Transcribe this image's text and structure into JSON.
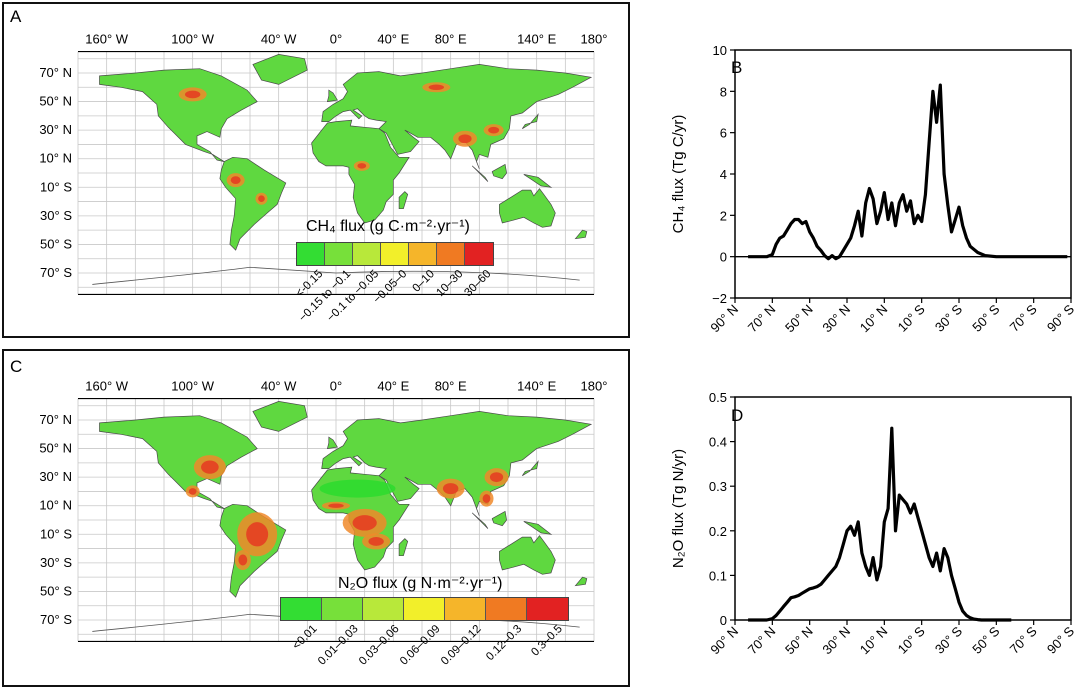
{
  "panels": {
    "A": {
      "letter": "A",
      "lon_labels": [
        "160° W",
        "100° W",
        "40° W",
        "0°",
        "40° E",
        "80° E",
        "140° E",
        "180°"
      ],
      "lat_labels": [
        "70° N",
        "50° N",
        "30° N",
        "10° N",
        "10° S",
        "30° S",
        "50° S",
        "70° S"
      ]
    },
    "C": {
      "letter": "C",
      "lon_labels": [
        "160° W",
        "100° W",
        "40° W",
        "0°",
        "40° E",
        "80° E",
        "140° E",
        "180°"
      ],
      "lat_labels": [
        "70° N",
        "50° N",
        "30° N",
        "10° N",
        "10° S",
        "30° S",
        "50° S",
        "70° S"
      ]
    },
    "B": {
      "letter": "B"
    },
    "D": {
      "letter": "D"
    }
  },
  "legend_ch4": {
    "title": "CH₄ flux (g C·m⁻²·yr⁻¹)",
    "labels": [
      "<-0.15",
      "−0.15 to −0.1",
      "−0.1 to −0.05",
      "−0.05–0",
      "0–10",
      "10–30",
      "30–60"
    ],
    "colors": [
      "#33dd33",
      "#77e03a",
      "#b8e83a",
      "#f2ef2a",
      "#f5b52a",
      "#f07a22",
      "#e22222"
    ]
  },
  "legend_n2o": {
    "title": "N₂O flux (g N·m⁻²·yr⁻¹)",
    "labels": [
      "<0.01",
      "0.01–0.03",
      "0.03–0.06",
      "0.06–0.09",
      "0.09–0.12",
      "0.12–0.3",
      "0.3–0.5"
    ],
    "colors": [
      "#33dd33",
      "#77e03a",
      "#b8e83a",
      "#f2ef2a",
      "#f5b52a",
      "#f07a22",
      "#e22222"
    ]
  },
  "colors": {
    "land_green": "#5fd840",
    "hot_red": "#e53a22",
    "hot_orange": "#f08a2a",
    "grid": "#c8c8c8",
    "line": "#000000"
  },
  "chart_data": [
    {
      "id": "B",
      "type": "line",
      "ylabel": "CH₄ flux (Tg C/yr)",
      "ylim": [
        -2,
        10
      ],
      "yticks": [
        -2,
        0,
        2,
        4,
        6,
        8,
        10
      ],
      "xticks": [
        90,
        70,
        50,
        30,
        10,
        -10,
        -30,
        -50,
        -70,
        -90
      ],
      "xtick_labels": [
        "90° N",
        "70° N",
        "50° N",
        "30° N",
        "10° N",
        "10° S",
        "30° S",
        "50° S",
        "70° S",
        "90° S"
      ],
      "zero_line": true,
      "x": [
        83,
        80,
        76,
        73,
        70,
        68,
        66,
        64,
        62,
        60,
        58,
        56,
        54,
        52,
        50,
        48,
        46,
        44,
        42,
        40,
        38,
        36,
        34,
        32,
        30,
        28,
        26,
        24,
        22,
        20,
        18,
        16,
        14,
        12,
        10,
        8,
        6,
        4,
        2,
        0,
        -2,
        -4,
        -6,
        -8,
        -10,
        -12,
        -14,
        -16,
        -18,
        -20,
        -22,
        -24,
        -26,
        -28,
        -30,
        -32,
        -34,
        -36,
        -40,
        -44,
        -50,
        -56,
        -62,
        -70,
        -80,
        -88
      ],
      "y": [
        0,
        0,
        0,
        0,
        0.1,
        0.6,
        0.9,
        1.0,
        1.3,
        1.6,
        1.8,
        1.8,
        1.6,
        1.7,
        1.2,
        0.9,
        0.5,
        0.3,
        0.05,
        -0.1,
        0.05,
        -0.1,
        0,
        0.3,
        0.6,
        0.9,
        1.5,
        2.2,
        1.0,
        2.6,
        3.3,
        2.8,
        1.6,
        2.2,
        3.1,
        1.8,
        2.6,
        1.5,
        2.6,
        3.0,
        2.2,
        2.7,
        1.6,
        2.0,
        1.7,
        3.0,
        5.5,
        8.0,
        6.5,
        8.3,
        4.0,
        2.5,
        1.2,
        1.8,
        2.4,
        1.5,
        0.9,
        0.5,
        0.2,
        0.05,
        0,
        0,
        0,
        0,
        0,
        0
      ]
    },
    {
      "id": "D",
      "type": "line",
      "ylabel": "N₂O flux (Tg N/yr)",
      "ylim": [
        0,
        0.5
      ],
      "yticks": [
        0,
        0.1,
        0.2,
        0.3,
        0.4,
        0.5
      ],
      "xticks": [
        90,
        70,
        50,
        30,
        10,
        -10,
        -30,
        -50,
        -70,
        -90
      ],
      "xtick_labels": [
        "90° N",
        "70° N",
        "50° N",
        "30° N",
        "10° N",
        "10° S",
        "30° S",
        "50° S",
        "70° S",
        "90° S"
      ],
      "zero_line": false,
      "x": [
        83,
        80,
        76,
        73,
        70,
        68,
        66,
        64,
        62,
        60,
        58,
        56,
        54,
        52,
        50,
        48,
        46,
        44,
        42,
        40,
        38,
        36,
        34,
        32,
        30,
        28,
        26,
        24,
        22,
        20,
        18,
        16,
        14,
        12,
        10,
        8,
        6,
        4,
        2,
        0,
        -2,
        -4,
        -6,
        -8,
        -10,
        -12,
        -14,
        -16,
        -18,
        -20,
        -22,
        -24,
        -26,
        -28,
        -30,
        -32,
        -34,
        -36,
        -38,
        -40,
        -42,
        -44,
        -48,
        -52,
        -56,
        -58
      ],
      "y": [
        0,
        0,
        0,
        0,
        0.003,
        0.01,
        0.02,
        0.03,
        0.04,
        0.05,
        0.052,
        0.055,
        0.06,
        0.065,
        0.07,
        0.072,
        0.075,
        0.08,
        0.09,
        0.1,
        0.11,
        0.12,
        0.14,
        0.17,
        0.2,
        0.21,
        0.19,
        0.22,
        0.15,
        0.12,
        0.1,
        0.14,
        0.09,
        0.12,
        0.22,
        0.25,
        0.43,
        0.2,
        0.28,
        0.27,
        0.26,
        0.24,
        0.26,
        0.23,
        0.2,
        0.17,
        0.14,
        0.12,
        0.15,
        0.11,
        0.16,
        0.14,
        0.1,
        0.07,
        0.04,
        0.02,
        0.01,
        0.005,
        0.002,
        0.001,
        0,
        0,
        0,
        0,
        0,
        0
      ]
    }
  ]
}
